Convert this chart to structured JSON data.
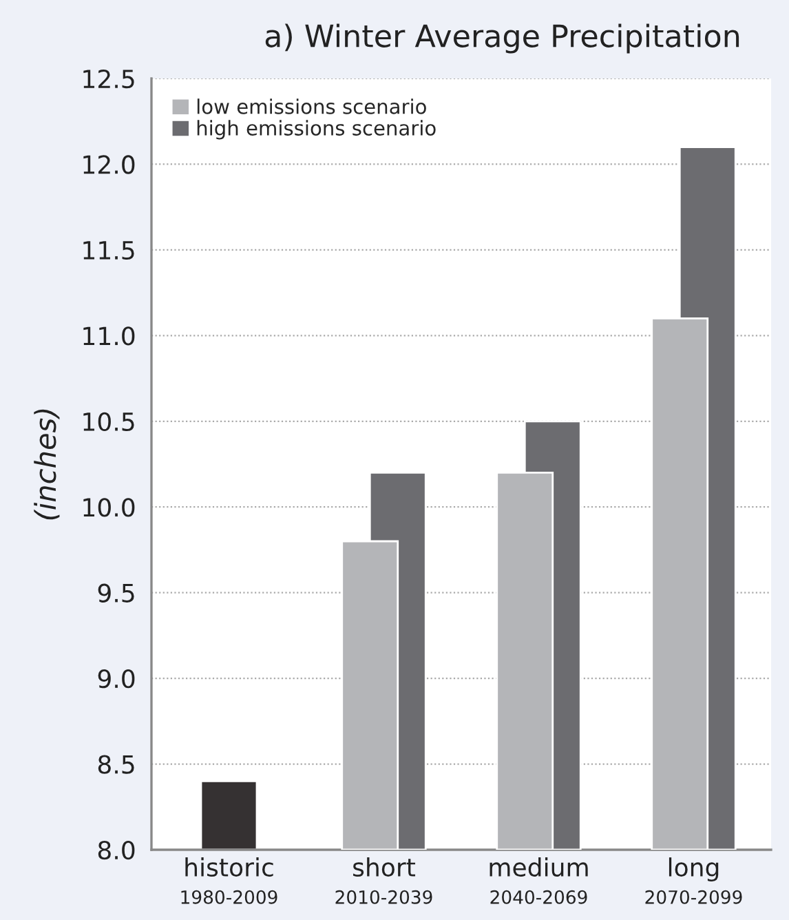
{
  "chart_data": {
    "type": "bar",
    "title": "a) Winter Average Precipitation",
    "ylabel": "(inches)",
    "categories": [
      "historic\n1980-2009",
      "short\n2010-2039",
      "medium\n2040-2069",
      "long\n2070-2099"
    ],
    "series": [
      {
        "color": "#353132",
        "values": [
          8.4,
          null,
          null,
          null
        ]
      },
      {
        "name": "high emissions scenario",
        "color": "#6c6c70",
        "values": [
          null,
          10.2,
          10.5,
          12.1
        ]
      },
      {
        "name": "low emissions scenario",
        "color": "#b4b5b8",
        "values": [
          null,
          9.8,
          10.2,
          11.1
        ]
      }
    ],
    "ylim": [
      8.0,
      12.5
    ],
    "yticks": [
      {
        "value": 8.0,
        "label": "8.0"
      },
      {
        "value": 8.5,
        "label": "8.5"
      },
      {
        "value": 9.0,
        "label": "9.0"
      },
      {
        "value": 9.5,
        "label": "9.5"
      },
      {
        "value": 10.0,
        "label": "10.0"
      },
      {
        "value": 10.5,
        "label": "10.5"
      },
      {
        "value": 11.0,
        "label": "11.0"
      },
      {
        "value": 11.5,
        "label": "11.5"
      },
      {
        "value": 12.0,
        "label": "12.0"
      },
      {
        "value": 12.5,
        "label": "12.5"
      }
    ],
    "grid": "y",
    "legend": "top left"
  }
}
